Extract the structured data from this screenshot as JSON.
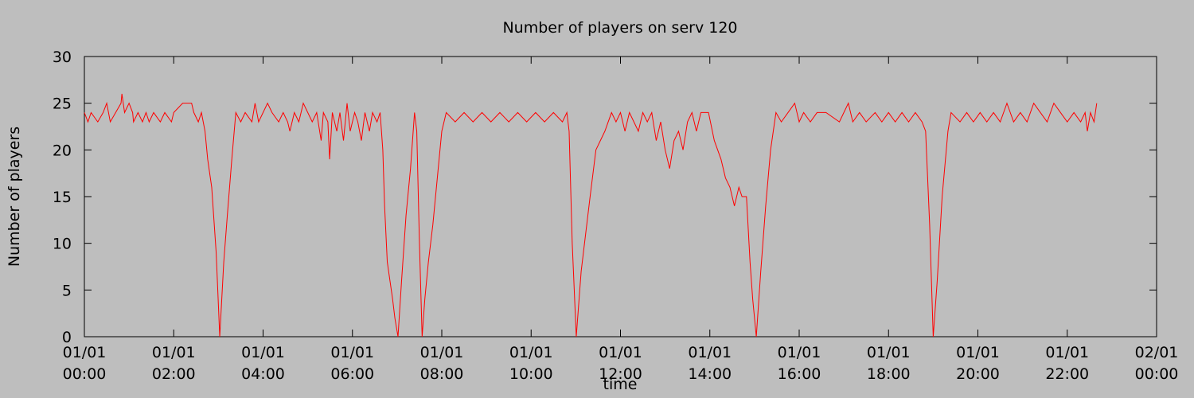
{
  "chart_data": {
    "type": "line",
    "title": "Number of players on serv 120",
    "xlabel": "time",
    "ylabel": "Number of players",
    "x": [
      0,
      0.08,
      0.15,
      0.3,
      0.42,
      0.5,
      0.58,
      0.7,
      0.82,
      0.84,
      0.9,
      1.0,
      1.08,
      1.1,
      1.2,
      1.3,
      1.38,
      1.45,
      1.55,
      1.7,
      1.8,
      1.95,
      2.0,
      2.2,
      2.4,
      2.45,
      2.55,
      2.62,
      2.7,
      2.76,
      2.85,
      2.95,
      3.03,
      3.12,
      3.2,
      3.3,
      3.39,
      3.5,
      3.6,
      3.75,
      3.82,
      3.9,
      4.0,
      4.1,
      4.2,
      4.35,
      4.45,
      4.55,
      4.6,
      4.7,
      4.8,
      4.9,
      5.0,
      5.1,
      5.2,
      5.3,
      5.35,
      5.45,
      5.49,
      5.55,
      5.65,
      5.72,
      5.8,
      5.88,
      5.95,
      6.05,
      6.12,
      6.2,
      6.28,
      6.38,
      6.45,
      6.55,
      6.62,
      6.68,
      6.72,
      6.78,
      6.84,
      6.9,
      6.95,
      7.02,
      7.1,
      7.2,
      7.3,
      7.39,
      7.44,
      7.5,
      7.56,
      7.62,
      7.7,
      7.8,
      7.9,
      8.0,
      8.1,
      8.3,
      8.5,
      8.7,
      8.9,
      9.1,
      9.3,
      9.5,
      9.7,
      9.9,
      10.1,
      10.3,
      10.5,
      10.7,
      10.8,
      10.85,
      10.92,
      11.01,
      11.12,
      11.22,
      11.32,
      11.45,
      11.55,
      11.65,
      11.8,
      11.9,
      12.0,
      12.1,
      12.2,
      12.3,
      12.4,
      12.5,
      12.6,
      12.7,
      12.8,
      12.9,
      13.0,
      13.1,
      13.2,
      13.3,
      13.4,
      13.5,
      13.6,
      13.7,
      13.8,
      13.97,
      14.1,
      14.25,
      14.35,
      14.45,
      14.55,
      14.65,
      14.72,
      14.82,
      14.9,
      14.96,
      15.04,
      15.14,
      15.25,
      15.36,
      15.48,
      15.6,
      15.75,
      15.9,
      16.0,
      16.1,
      16.25,
      16.4,
      16.6,
      16.9,
      17.1,
      17.2,
      17.35,
      17.5,
      17.7,
      17.85,
      18.0,
      18.15,
      18.3,
      18.45,
      18.6,
      18.75,
      18.83,
      18.92,
      19.0,
      19.09,
      19.2,
      19.33,
      19.4,
      19.6,
      19.75,
      19.9,
      20.05,
      20.2,
      20.35,
      20.5,
      20.65,
      20.8,
      20.95,
      21.1,
      21.25,
      21.4,
      21.55,
      21.7,
      21.85,
      22.0,
      22.15,
      22.3,
      22.4,
      22.45,
      22.52,
      22.6,
      22.66
    ],
    "series": [
      {
        "color": "#ff0000",
        "values": [
          24,
          23,
          24,
          23,
          24,
          25,
          23,
          24,
          25,
          26,
          24,
          25,
          24,
          23,
          24,
          23,
          24,
          23,
          24,
          23,
          24,
          23,
          24,
          25,
          25,
          24,
          23,
          24,
          22,
          19,
          16,
          9,
          0,
          8,
          13,
          19,
          24,
          23,
          24,
          23,
          25,
          23,
          24,
          25,
          24,
          23,
          24,
          23,
          22,
          24,
          23,
          25,
          24,
          23,
          24,
          21,
          24,
          23,
          19,
          24,
          22,
          24,
          21,
          25,
          22,
          24,
          23,
          21,
          24,
          22,
          24,
          23,
          24,
          20,
          14,
          8,
          6,
          4,
          2,
          0,
          6,
          13,
          18,
          24,
          22,
          10,
          0,
          4,
          8,
          12,
          17,
          22,
          24,
          23,
          24,
          23,
          24,
          23,
          24,
          23,
          24,
          23,
          24,
          23,
          24,
          23,
          24,
          22,
          10,
          0,
          7,
          11,
          15,
          20,
          21,
          22,
          24,
          23,
          24,
          22,
          24,
          23,
          22,
          24,
          23,
          24,
          21,
          23,
          20,
          18,
          21,
          22,
          20,
          23,
          24,
          22,
          24,
          24,
          21,
          19,
          17,
          16,
          14,
          16,
          15,
          15,
          8,
          4,
          0,
          7,
          14,
          20,
          24,
          23,
          24,
          25,
          23,
          24,
          23,
          24,
          24,
          23,
          25,
          23,
          24,
          23,
          24,
          23,
          24,
          23,
          24,
          23,
          24,
          23,
          22,
          12,
          0,
          6,
          15,
          22,
          24,
          23,
          24,
          23,
          24,
          23,
          24,
          23,
          25,
          23,
          24,
          23,
          25,
          24,
          23,
          25,
          24,
          23,
          24,
          23,
          24,
          22,
          24,
          23,
          25
        ]
      }
    ],
    "xlim": [
      0,
      24
    ],
    "xticks": [
      {
        "value": 0,
        "label": "01/01 00:00"
      },
      {
        "value": 2,
        "label": "01/01 02:00"
      },
      {
        "value": 4,
        "label": "01/01 04:00"
      },
      {
        "value": 6,
        "label": "01/01 06:00"
      },
      {
        "value": 8,
        "label": "01/01 08:00"
      },
      {
        "value": 10,
        "label": "01/01 10:00"
      },
      {
        "value": 12,
        "label": "01/01 12:00"
      },
      {
        "value": 14,
        "label": "01/01 14:00"
      },
      {
        "value": 16,
        "label": "01/01 16:00"
      },
      {
        "value": 18,
        "label": "01/01 18:00"
      },
      {
        "value": 20,
        "label": "01/01 20:00"
      },
      {
        "value": 22,
        "label": "01/01 22:00"
      },
      {
        "value": 24,
        "label": "02/01 00:00"
      }
    ],
    "ylim": [
      0,
      30
    ],
    "yticks": [
      0,
      5,
      10,
      15,
      20,
      25,
      30
    ],
    "grid": false
  }
}
